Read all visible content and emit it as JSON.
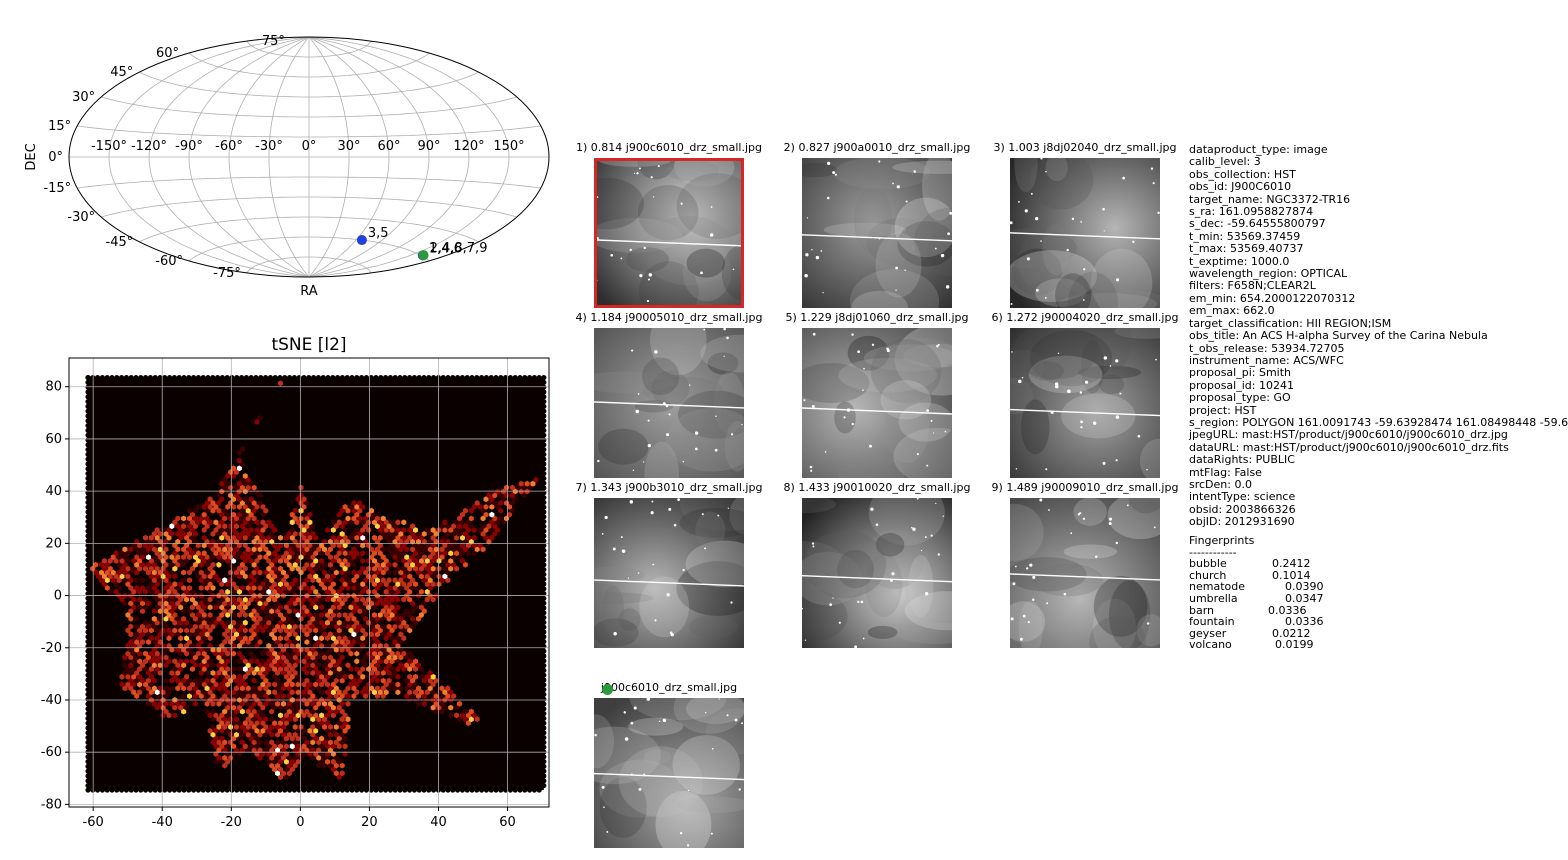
{
  "sky_map": {
    "xlabel": "RA",
    "ylabel": "DEC",
    "ra_ticks": [
      "-150°",
      "-120°",
      "-90°",
      "-60°",
      "-30°",
      "0°",
      "30°",
      "60°",
      "90°",
      "120°",
      "150°"
    ],
    "dec_ticks": [
      {
        "deg": 75,
        "label": "75°"
      },
      {
        "deg": 60,
        "label": "60°"
      },
      {
        "deg": 45,
        "label": "45°"
      },
      {
        "deg": 30,
        "label": "30°"
      },
      {
        "deg": 15,
        "label": "15°"
      },
      {
        "deg": 0,
        "label": "0°"
      },
      {
        "deg": -15,
        "label": "-15°"
      },
      {
        "deg": -30,
        "label": "-30°"
      },
      {
        "deg": -45,
        "label": "-45°"
      },
      {
        "deg": -60,
        "label": "-60°"
      },
      {
        "deg": -75,
        "label": "-75°"
      }
    ],
    "points": [
      {
        "label": "3,5",
        "ra": 67,
        "dec": -60,
        "color": "#1f3fe0"
      },
      {
        "label": "1,4,6",
        "ra": 161.1,
        "dec": -59.6,
        "color": "#1f3fe0"
      },
      {
        "label": "2,4,8,7,9",
        "ra": 161.3,
        "dec": -59.4,
        "color": "#2a9a3a"
      }
    ]
  },
  "chart_data": {
    "type": "heatmap",
    "title": "tSNE [l2]",
    "xlabel": "",
    "ylabel": "",
    "xlim": [
      -67,
      72
    ],
    "ylim": [
      -81,
      91
    ],
    "x_ticks": [
      -60,
      -40,
      -20,
      0,
      20,
      40,
      60
    ],
    "y_ticks": [
      -80,
      -60,
      -40,
      -20,
      0,
      20,
      40,
      60,
      80
    ],
    "grid": true,
    "background_color": "#0a0000",
    "shape_vertices": [
      [
        -5,
        83
      ],
      [
        -15,
        60
      ],
      [
        -25,
        38
      ],
      [
        -42,
        25
      ],
      [
        -62,
        10
      ],
      [
        -50,
        -5
      ],
      [
        -52,
        -35
      ],
      [
        -38,
        -48
      ],
      [
        -28,
        -40
      ],
      [
        -24,
        -67
      ],
      [
        -14,
        -60
      ],
      [
        -4,
        -72
      ],
      [
        2,
        -62
      ],
      [
        12,
        -72
      ],
      [
        15,
        -40
      ],
      [
        28,
        -38
      ],
      [
        40,
        -45
      ],
      [
        55,
        -52
      ],
      [
        45,
        -38
      ],
      [
        30,
        -20
      ],
      [
        42,
        5
      ],
      [
        55,
        20
      ],
      [
        70,
        45
      ],
      [
        55,
        40
      ],
      [
        38,
        25
      ],
      [
        25,
        30
      ],
      [
        15,
        38
      ],
      [
        5,
        20
      ],
      [
        0,
        45
      ],
      [
        -5,
        20
      ],
      [
        -12,
        40
      ],
      [
        -18,
        55
      ]
    ],
    "hexbin_colormap": [
      "#3a0000",
      "#8b0000",
      "#c0301a",
      "#e04a1f",
      "#f08030",
      "#ffd040",
      "#ffffff"
    ]
  },
  "thumbnails": [
    {
      "title": "1) 0.814 j900c6010_drz_small.jpg",
      "selected": true
    },
    {
      "title": "2) 0.827 j900a0010_drz_small.jpg",
      "selected": false
    },
    {
      "title": "3) 1.003 j8dj02040_drz_small.jpg",
      "selected": false
    },
    {
      "title": "4) 1.184 j90005010_drz_small.jpg",
      "selected": false
    },
    {
      "title": "5) 1.229 j8dj01060_drz_small.jpg",
      "selected": false
    },
    {
      "title": "6) 1.272 j90004020_drz_small.jpg",
      "selected": false
    },
    {
      "title": "7) 1.343 j900b3010_drz_small.jpg",
      "selected": false
    },
    {
      "title": "8) 1.433 j90010020_drz_small.jpg",
      "selected": false
    },
    {
      "title": "9) 1.489 j90009010_drz_small.jpg",
      "selected": false
    }
  ],
  "query_image": {
    "title": "j900c6010_drz_small.jpg",
    "marker_color": "#2a9a3a"
  },
  "selected_color": "#d62728",
  "metadata": [
    "dataproduct_type: image",
    "calib_level: 3",
    "obs_collection: HST",
    "obs_id: J900C6010",
    "target_name: NGC3372-TR16",
    "s_ra: 161.0958827874",
    "s_dec: -59.64555800797",
    "t_min: 53569.37459",
    "t_max: 53569.40737",
    "t_exptime: 1000.0",
    "wavelength_region: OPTICAL",
    "filters: F658N;CLEAR2L",
    "em_min: 654.2000122070312",
    "em_max: 662.0",
    "target_classification: HII REGION;ISM",
    "obs_title: An ACS H-alpha Survey of the Carina Nebula",
    "t_obs_release: 53934.72705",
    "instrument_name: ACS/WFC",
    "proposal_pi: Smith",
    "proposal_id: 10241",
    "proposal_type: GO",
    "project: HST",
    "s_region: POLYGON 161.0091743 -59.63928474 161.08498448 -59.6",
    "jpegURL: mast:HST/product/j900c6010/j900c6010_drz.jpg",
    "dataURL: mast:HST/product/j900c6010/j900c6010_drz.fits",
    "dataRights: PUBLIC",
    "mtFlag: False",
    "srcDen: 0.0",
    "intentType: science",
    "obsid: 2003866326",
    "objID: 2012931690"
  ],
  "fingerprints": {
    "title": "Fingerprints",
    "rule": "------------",
    "items": [
      {
        "name": "bubble",
        "value": "0.2412"
      },
      {
        "name": "church",
        "value": "0.1014"
      },
      {
        "name": "nematode",
        "value": "0.0390"
      },
      {
        "name": "umbrella",
        "value": "0.0347"
      },
      {
        "name": "barn",
        "value": "0.0336"
      },
      {
        "name": "fountain",
        "value": "0.0336"
      },
      {
        "name": "geyser",
        "value": "0.0212"
      },
      {
        "name": "volcano",
        "value": "0.0199"
      }
    ]
  }
}
